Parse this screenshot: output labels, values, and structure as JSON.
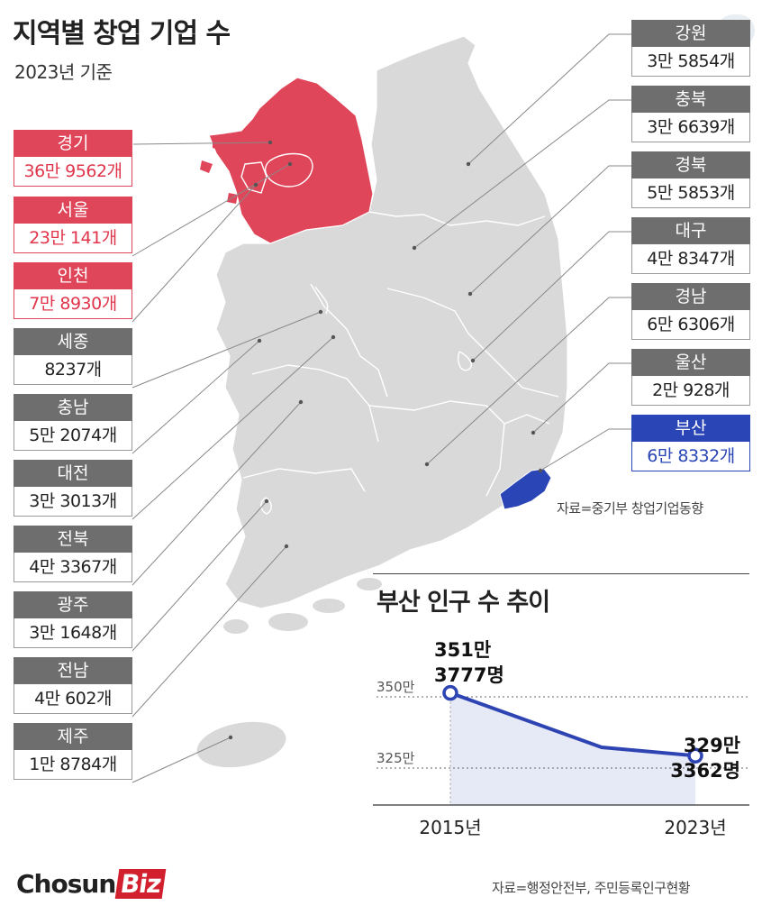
{
  "title": "지역별 창업 기업 수",
  "subtitle": "2023년 기준",
  "source_map": "자료=중기부 창업기업동향",
  "source_chart": "자료=행정안전부, 주민등록인구현황",
  "logo": {
    "main": "Chosun",
    "accent": "Biz"
  },
  "colors": {
    "highlight_red": "#e0465a",
    "highlight_blue": "#2a46b6",
    "map_gray": "#d7d7d7",
    "label_gray": "#6e6e6e"
  },
  "icons": {
    "zoom": "zoom-lens-icon"
  },
  "regions_left": [
    {
      "name": "경기",
      "value": "36만 9562개",
      "highlight": "red"
    },
    {
      "name": "서울",
      "value": "23만 141개",
      "highlight": "red"
    },
    {
      "name": "인천",
      "value": "7만 8930개",
      "highlight": "red"
    },
    {
      "name": "세종",
      "value": "8237개",
      "highlight": ""
    },
    {
      "name": "충남",
      "value": "5만 2074개",
      "highlight": ""
    },
    {
      "name": "대전",
      "value": "3만 3013개",
      "highlight": ""
    },
    {
      "name": "전북",
      "value": "4만 3367개",
      "highlight": ""
    },
    {
      "name": "광주",
      "value": "3만 1648개",
      "highlight": ""
    },
    {
      "name": "전남",
      "value": "4만 602개",
      "highlight": ""
    },
    {
      "name": "제주",
      "value": "1만 8784개",
      "highlight": ""
    }
  ],
  "regions_right": [
    {
      "name": "강원",
      "value": "3만 5854개",
      "highlight": ""
    },
    {
      "name": "충북",
      "value": "3만 6639개",
      "highlight": ""
    },
    {
      "name": "경북",
      "value": "5만 5853개",
      "highlight": ""
    },
    {
      "name": "대구",
      "value": "4만 8347개",
      "highlight": ""
    },
    {
      "name": "경남",
      "value": "6만 6306개",
      "highlight": ""
    },
    {
      "name": "울산",
      "value": "2만 928개",
      "highlight": ""
    },
    {
      "name": "부산",
      "value": "6만 8332개",
      "highlight": "blue"
    }
  ],
  "chart_data": {
    "type": "line",
    "title": "부산 인구 수 추이",
    "x": [
      "2015년",
      "2023년"
    ],
    "series": [
      {
        "values": [
          3513777,
          3293362
        ],
        "labels": [
          [
            "351만",
            "3777명"
          ],
          [
            "329만",
            "3362명"
          ]
        ]
      }
    ],
    "yticks": [
      {
        "value": 3500000,
        "label": "350만"
      },
      {
        "value": 3250000,
        "label": "325만"
      }
    ],
    "color": "#2f44b3",
    "grid": "dotted"
  }
}
